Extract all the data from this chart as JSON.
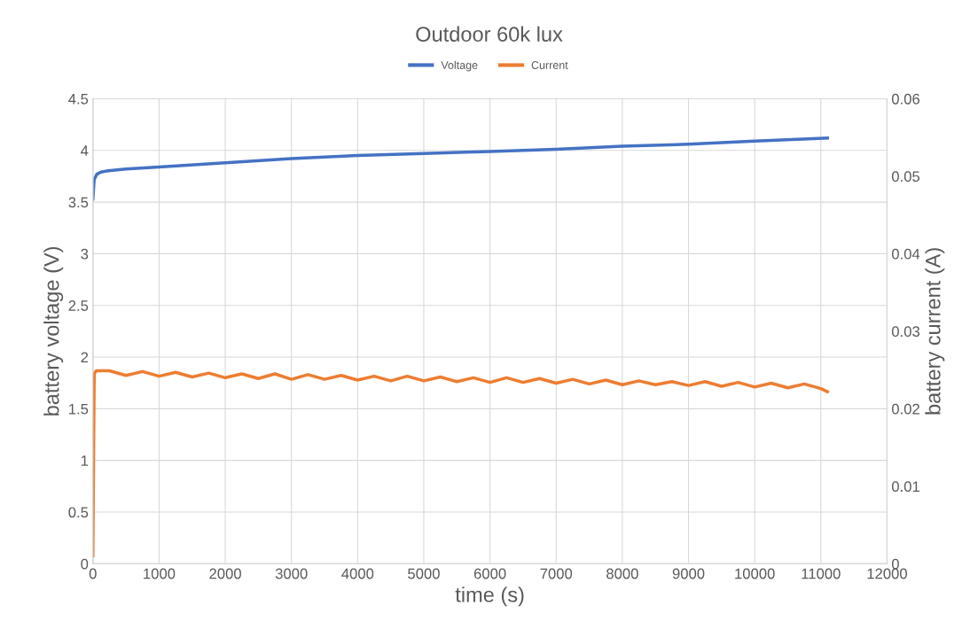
{
  "chart_data": {
    "type": "line",
    "title": "Outdoor 60k lux",
    "xlabel": "time (s)",
    "ylabel": "battery voltage (V)",
    "y2label": "battery current (A)",
    "xlim": [
      0,
      12000
    ],
    "xticks": [
      0,
      1000,
      2000,
      3000,
      4000,
      5000,
      6000,
      7000,
      8000,
      9000,
      10000,
      11000,
      12000
    ],
    "ylim": [
      0,
      4.5
    ],
    "yticks": [
      0,
      0.5,
      1,
      1.5,
      2,
      2.5,
      3,
      3.5,
      4,
      4.5
    ],
    "y2lim": [
      0,
      0.06
    ],
    "y2ticks": [
      0,
      0.01,
      0.02,
      0.03,
      0.04,
      0.05,
      0.06
    ],
    "grid": true,
    "legend": "top",
    "line_style": "solid",
    "marker": "none",
    "series": [
      {
        "name": "Voltage",
        "color": "#4472c4",
        "x": [
          0,
          20,
          60,
          120,
          200,
          500,
          1000,
          2000,
          3000,
          4000,
          5000,
          6000,
          7000,
          8000,
          9000,
          10000,
          11100
        ],
        "values": [
          3.53,
          3.72,
          3.77,
          3.79,
          3.8,
          3.82,
          3.84,
          3.88,
          3.92,
          3.95,
          3.97,
          3.99,
          4.01,
          4.04,
          4.06,
          4.09,
          4.12
        ]
      },
      {
        "name": "Current",
        "color": "#ed7d31",
        "axis": "y2",
        "x": [
          0,
          20,
          50,
          250,
          500,
          750,
          1000,
          1250,
          1500,
          1750,
          2000,
          2250,
          2500,
          2750,
          3000,
          3250,
          3500,
          3750,
          4000,
          4250,
          4500,
          4750,
          5000,
          5250,
          5500,
          5750,
          6000,
          6250,
          6500,
          6750,
          7000,
          7250,
          7500,
          7750,
          8000,
          8250,
          8500,
          8750,
          9000,
          9250,
          9500,
          9750,
          10000,
          10250,
          10500,
          10750,
          11000,
          11100
        ],
        "values": [
          0.001,
          0.0245,
          0.0249,
          0.0249,
          0.0243,
          0.0248,
          0.0242,
          0.0247,
          0.0241,
          0.0246,
          0.024,
          0.0245,
          0.0239,
          0.0245,
          0.0238,
          0.0244,
          0.0238,
          0.0243,
          0.0237,
          0.0242,
          0.0236,
          0.0242,
          0.0236,
          0.0241,
          0.0235,
          0.024,
          0.0234,
          0.024,
          0.0234,
          0.0239,
          0.0233,
          0.0238,
          0.0232,
          0.0237,
          0.0231,
          0.0236,
          0.0231,
          0.0235,
          0.023,
          0.0235,
          0.0229,
          0.0234,
          0.0228,
          0.0233,
          0.0227,
          0.0232,
          0.0226,
          0.0222
        ]
      }
    ]
  }
}
